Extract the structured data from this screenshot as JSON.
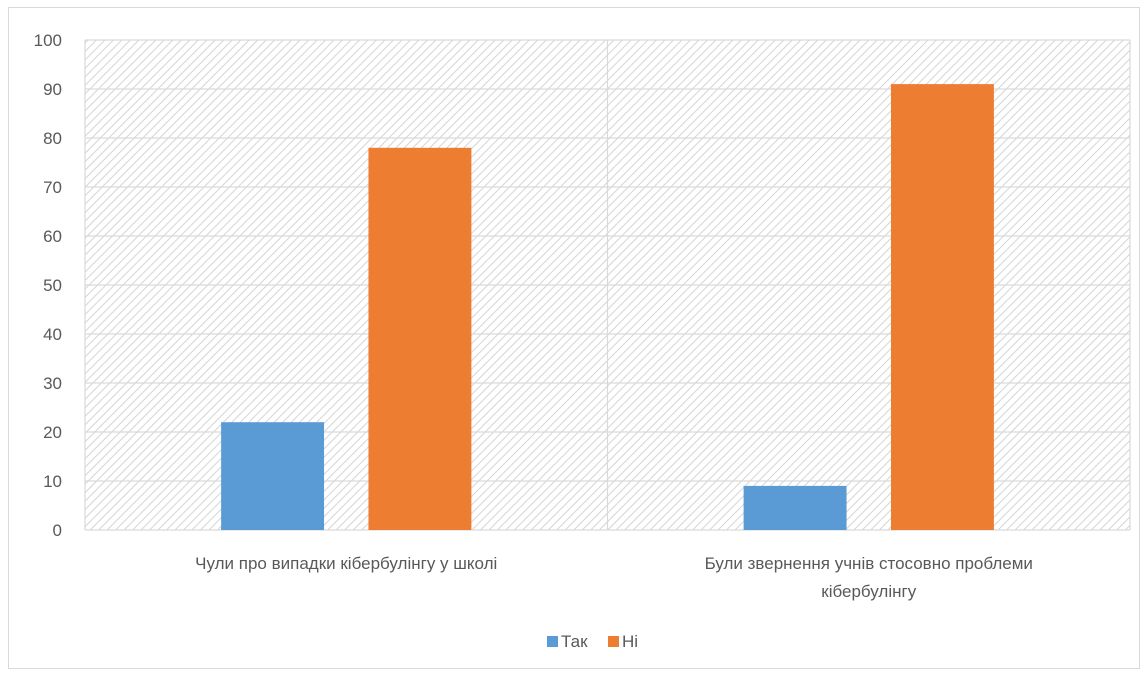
{
  "chart_data": {
    "type": "bar",
    "categories": [
      "Чули про випадки кібербулінгу у школі",
      "Були звернення учнів стосовно проблеми кібербулінгу"
    ],
    "category_lines": [
      [
        "Чули про випадки кібербулінгу у школі"
      ],
      [
        "Були звернення учнів стосовно проблеми",
        "кібербулінгу"
      ]
    ],
    "series": [
      {
        "name": "Так",
        "values": [
          22,
          9
        ],
        "color": "#5b9bd5"
      },
      {
        "name": "Ні",
        "values": [
          78,
          91
        ],
        "color": "#ed7d31"
      }
    ],
    "ylim": [
      0,
      100
    ],
    "yticks": [
      "0",
      "10",
      "20",
      "30",
      "40",
      "50",
      "60",
      "70",
      "80",
      "90",
      "100"
    ],
    "grid": true,
    "plot_background": "hatched",
    "legend_position": "bottom"
  }
}
